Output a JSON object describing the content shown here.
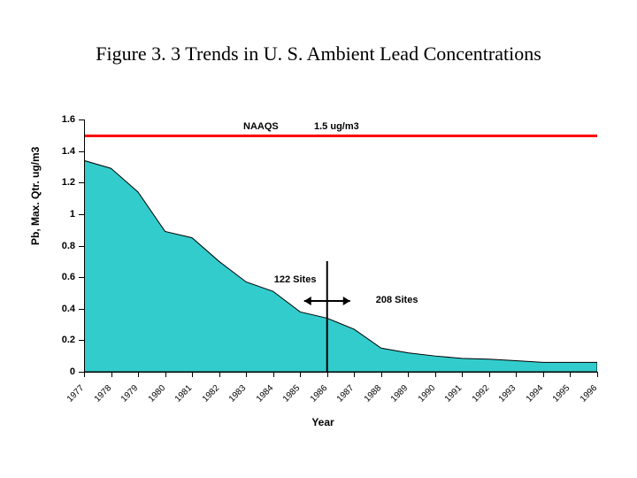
{
  "title": "Figure 3. 3 Trends in U. S. Ambient Lead Concentrations",
  "chart": {
    "type": "area",
    "x_categories": [
      "1977",
      "1978",
      "1979",
      "1980",
      "1981",
      "1982",
      "1983",
      "1984",
      "1985",
      "1986",
      "1987",
      "1988",
      "1989",
      "1990",
      "1991",
      "1992",
      "1993",
      "1994",
      "1995",
      "1996"
    ],
    "y_values": [
      1.34,
      1.29,
      1.14,
      0.89,
      0.85,
      0.7,
      0.57,
      0.51,
      0.38,
      0.34,
      0.27,
      0.15,
      0.12,
      0.1,
      0.085,
      0.08,
      0.07,
      0.06,
      0.06,
      0.06
    ],
    "ylim": [
      0,
      1.6
    ],
    "ytick_step": 0.2,
    "y_ticks": [
      0,
      0.2,
      0.4,
      0.6,
      0.8,
      1,
      1.2,
      1.4,
      1.6
    ],
    "y_tick_labels": [
      "0",
      "0.2",
      "0.4",
      "0.6",
      "0.8",
      "1",
      "1.2",
      "1.4",
      "1.6"
    ],
    "fill_color": "#33cccc",
    "fill_stroke": "#000000",
    "reference_line": {
      "value": 1.5,
      "color": "#ff0000",
      "label_left": "NAAQS",
      "label_right": "1.5 ug/m3"
    },
    "y_axis_label": "Pb, Max. Qtr. ug/m3",
    "x_axis_label": "Year",
    "annotations": {
      "left_label": "122 Sites",
      "right_label": "208 Sites",
      "split_index": 9
    },
    "background_color": "#ffffff",
    "title_font": "Times New Roman",
    "title_fontsize": 22,
    "axis_fontsize": 11
  }
}
